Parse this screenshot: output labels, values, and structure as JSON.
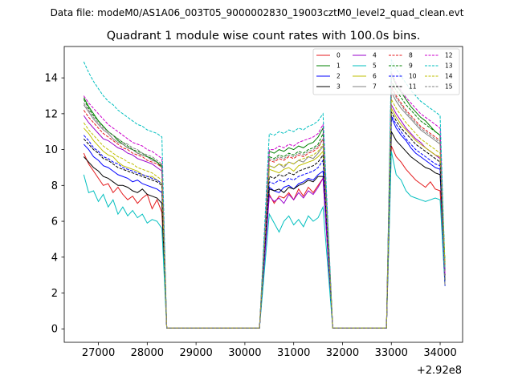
{
  "chart_data": {
    "type": "line",
    "suptitle": "Data file: modeM0/AS1A06_003T05_9000002830_19003cztM0_level2_quad_clean.evt",
    "title": "Quadrant 1 module wise count rates with 100.0s bins.",
    "xlabel": "",
    "ylabel": "",
    "x_offset_label": "+2.92e8",
    "x_offset": 292000000,
    "xlim": [
      26300,
      34460
    ],
    "ylim": [
      -0.75,
      15.75
    ],
    "xticks": [
      27000,
      28000,
      29000,
      30000,
      31000,
      32000,
      33000,
      34000
    ],
    "xtick_labels": [
      "27000",
      "28000",
      "29000",
      "30000",
      "31000",
      "32000",
      "33000",
      "34000"
    ],
    "yticks": [
      0,
      2,
      4,
      6,
      8,
      10,
      12,
      14
    ],
    "ytick_labels": [
      "0",
      "2",
      "4",
      "6",
      "8",
      "10",
      "12",
      "14"
    ],
    "grid": false,
    "legend_position": "top-right",
    "legend_columns": 4,
    "segments": [
      {
        "start": 26700,
        "count": 17
      },
      {
        "start": 30500,
        "count": 12
      },
      {
        "start": 33000,
        "count": 11
      }
    ],
    "segment_edges": {
      "gaps": [
        [
          28400,
          30300
        ],
        [
          31800,
          32900
        ]
      ],
      "drop_value": 0.05
    },
    "series": [
      {
        "name": "0",
        "color": "#e41a1c",
        "dash": "solid",
        "seg1": [
          9.8,
          9.2,
          8.8,
          8.4,
          8.0,
          8.1,
          7.6,
          7.9,
          7.5,
          7.2,
          7.4,
          7.0,
          7.3,
          7.5,
          6.7,
          7.2,
          6.5
        ],
        "seg2": [
          7.5,
          7.0,
          7.4,
          7.3,
          7.6,
          7.2,
          7.8,
          7.4,
          7.9,
          7.6,
          8.0,
          8.4
        ],
        "seg3": [
          10.2,
          9.6,
          9.3,
          8.9,
          8.6,
          8.3,
          8.1,
          7.9,
          8.2,
          7.8,
          7.7
        ]
      },
      {
        "name": "1",
        "color": "#008000",
        "dash": "solid",
        "seg1": [
          12.9,
          12.4,
          12.0,
          11.6,
          11.3,
          11.0,
          10.8,
          10.5,
          10.3,
          10.1,
          10.0,
          9.8,
          9.7,
          9.6,
          9.5,
          9.3,
          9.0
        ],
        "seg2": [
          9.9,
          9.8,
          10.0,
          9.9,
          10.1,
          10.0,
          10.2,
          10.1,
          10.3,
          10.4,
          10.7,
          11.2
        ],
        "seg3": [
          14.2,
          13.6,
          13.2,
          12.8,
          12.4,
          12.1,
          11.8,
          11.6,
          11.3,
          11.0,
          10.8
        ]
      },
      {
        "name": "2",
        "color": "#0000ff",
        "dash": "solid",
        "seg1": [
          10.3,
          10.0,
          9.6,
          9.4,
          9.1,
          9.0,
          8.8,
          8.6,
          8.5,
          8.4,
          8.2,
          8.3,
          8.1,
          8.0,
          7.9,
          7.8,
          7.6
        ],
        "seg2": [
          7.9,
          7.7,
          7.6,
          7.9,
          8.0,
          7.8,
          8.1,
          8.2,
          8.4,
          8.3,
          8.6,
          8.8
        ],
        "seg3": [
          11.8,
          11.2,
          10.8,
          10.5,
          10.1,
          9.8,
          9.6,
          9.4,
          9.2,
          9.0,
          8.9
        ]
      },
      {
        "name": "3",
        "color": "#000000",
        "dash": "solid",
        "seg1": [
          9.6,
          9.3,
          9.0,
          8.8,
          8.5,
          8.4,
          8.2,
          8.0,
          8.0,
          7.9,
          7.7,
          7.6,
          7.8,
          7.5,
          7.4,
          7.3,
          7.0
        ],
        "seg2": [
          7.8,
          7.7,
          7.8,
          7.6,
          7.9,
          7.8,
          8.0,
          8.1,
          8.3,
          8.2,
          8.5,
          8.5
        ],
        "seg3": [
          11.0,
          10.5,
          10.2,
          9.9,
          9.6,
          9.4,
          9.2,
          9.0,
          8.9,
          8.7,
          8.6
        ]
      },
      {
        "name": "4",
        "color": "#9900cc",
        "dash": "solid",
        "seg1": [
          11.9,
          11.5,
          11.2,
          10.9,
          10.6,
          10.5,
          10.3,
          10.1,
          10.0,
          9.8,
          9.7,
          9.5,
          9.4,
          9.3,
          9.2,
          9.0,
          8.8
        ],
        "seg2": [
          7.4,
          7.1,
          7.3,
          7.0,
          7.5,
          7.2,
          7.6,
          7.3,
          7.7,
          7.5,
          7.9,
          8.4
        ],
        "seg3": [
          12.5,
          12.0,
          11.6,
          11.2,
          10.9,
          10.6,
          10.4,
          10.1,
          9.9,
          9.7,
          9.5
        ]
      },
      {
        "name": "5",
        "color": "#00bfbf",
        "dash": "solid",
        "seg1": [
          8.6,
          7.6,
          7.7,
          7.1,
          7.5,
          6.8,
          7.2,
          6.4,
          6.8,
          6.3,
          6.6,
          6.2,
          6.4,
          5.9,
          6.1,
          6.0,
          5.6
        ],
        "seg2": [
          6.4,
          5.9,
          5.4,
          6.0,
          6.3,
          5.8,
          6.1,
          5.7,
          6.3,
          6.0,
          6.2,
          6.8
        ],
        "seg3": [
          9.9,
          8.6,
          8.3,
          7.7,
          7.4,
          7.3,
          7.2,
          7.1,
          7.2,
          7.3,
          7.2
        ]
      },
      {
        "name": "6",
        "color": "#bfbf00",
        "dash": "solid",
        "seg1": [
          11.2,
          10.9,
          10.5,
          10.2,
          9.9,
          9.7,
          9.6,
          9.3,
          9.1,
          9.0,
          8.9,
          8.8,
          8.6,
          8.5,
          8.5,
          8.3,
          8.1
        ],
        "seg2": [
          8.9,
          8.8,
          8.7,
          8.9,
          9.0,
          8.8,
          9.1,
          9.2,
          9.3,
          9.4,
          9.6,
          9.9
        ],
        "seg3": [
          12.3,
          11.8,
          11.4,
          11.1,
          10.8,
          10.5,
          10.3,
          10.1,
          9.9,
          9.7,
          9.6
        ]
      },
      {
        "name": "7",
        "color": "#808080",
        "dash": "solid",
        "seg1": [
          12.5,
          12.1,
          11.7,
          11.4,
          11.1,
          10.9,
          10.6,
          10.4,
          10.3,
          10.1,
          10.0,
          9.8,
          9.7,
          9.6,
          9.4,
          9.3,
          9.1
        ],
        "seg2": [
          9.1,
          9.0,
          9.2,
          9.0,
          9.3,
          9.2,
          9.4,
          9.3,
          9.6,
          9.5,
          9.8,
          10.2
        ],
        "seg3": [
          13.2,
          12.7,
          12.3,
          12.0,
          11.7,
          11.4,
          11.1,
          10.9,
          10.7,
          10.5,
          10.3
        ]
      },
      {
        "name": "8",
        "color": "#e41a1c",
        "dash": "dashed",
        "seg1": [
          12.2,
          11.8,
          11.5,
          11.2,
          10.9,
          10.7,
          10.5,
          10.3,
          10.1,
          10.0,
          9.8,
          9.7,
          9.6,
          9.4,
          9.3,
          9.2,
          9.0
        ],
        "seg2": [
          9.4,
          9.3,
          9.5,
          9.4,
          9.6,
          9.5,
          9.7,
          9.6,
          9.8,
          9.9,
          10.1,
          10.6
        ],
        "seg3": [
          13.5,
          13.0,
          12.6,
          12.2,
          11.9,
          11.6,
          11.3,
          11.1,
          10.9,
          10.7,
          10.5
        ]
      },
      {
        "name": "9",
        "color": "#008000",
        "dash": "dashed",
        "seg1": [
          12.8,
          12.3,
          11.9,
          11.6,
          11.3,
          11.0,
          10.8,
          10.6,
          10.4,
          10.2,
          10.0,
          9.9,
          9.8,
          9.6,
          9.5,
          9.3,
          9.1
        ],
        "seg2": [
          9.6,
          9.5,
          9.7,
          9.6,
          9.8,
          9.7,
          9.9,
          9.8,
          10.0,
          10.1,
          10.3,
          10.9
        ],
        "seg3": [
          13.8,
          13.3,
          12.9,
          12.5,
          12.2,
          11.9,
          11.6,
          11.4,
          11.2,
          11.0,
          10.8
        ]
      },
      {
        "name": "10",
        "color": "#0000ff",
        "dash": "dashed",
        "seg1": [
          10.8,
          10.5,
          10.1,
          9.9,
          9.6,
          9.5,
          9.3,
          9.2,
          9.0,
          8.9,
          8.8,
          8.7,
          8.6,
          8.5,
          8.4,
          8.3,
          8.1
        ],
        "seg2": [
          8.2,
          8.1,
          8.3,
          8.2,
          8.4,
          8.3,
          8.5,
          8.6,
          8.7,
          8.8,
          9.0,
          9.4
        ],
        "seg3": [
          11.9,
          11.4,
          11.0,
          10.6,
          10.3,
          10.0,
          9.8,
          9.6,
          9.4,
          9.2,
          9.1
        ]
      },
      {
        "name": "11",
        "color": "#000000",
        "dash": "dashed",
        "seg1": [
          10.6,
          10.3,
          10.0,
          9.8,
          9.5,
          9.4,
          9.2,
          9.0,
          8.9,
          8.8,
          8.7,
          8.6,
          8.5,
          8.4,
          8.3,
          8.2,
          8.0
        ],
        "seg2": [
          8.5,
          8.4,
          8.6,
          8.5,
          8.7,
          8.6,
          8.8,
          8.9,
          9.0,
          9.1,
          9.3,
          9.7
        ],
        "seg3": [
          12.1,
          11.6,
          11.2,
          10.9,
          10.6,
          10.3,
          10.1,
          9.9,
          9.7,
          9.5,
          9.3
        ]
      },
      {
        "name": "12",
        "color": "#cc00cc",
        "dash": "dashed",
        "seg1": [
          13.0,
          12.6,
          12.3,
          12.0,
          11.7,
          11.4,
          11.2,
          11.0,
          10.8,
          10.6,
          10.4,
          10.3,
          10.2,
          10.0,
          9.9,
          9.7,
          9.5
        ],
        "seg2": [
          10.0,
          10.0,
          10.2,
          10.1,
          10.3,
          10.2,
          10.4,
          10.5,
          10.6,
          10.7,
          10.9,
          11.4
        ],
        "seg3": [
          14.3,
          13.7,
          13.3,
          12.9,
          12.6,
          12.3,
          12.0,
          11.8,
          11.6,
          11.4,
          11.2
        ]
      },
      {
        "name": "13",
        "color": "#00bfbf",
        "dash": "dashed",
        "seg1": [
          14.9,
          14.3,
          13.8,
          13.4,
          13.0,
          12.7,
          12.5,
          12.2,
          12.0,
          11.8,
          11.6,
          11.4,
          11.3,
          11.1,
          11.0,
          10.9,
          10.7
        ],
        "seg2": [
          10.9,
          10.8,
          11.0,
          10.9,
          11.1,
          11.0,
          11.2,
          11.1,
          11.3,
          11.4,
          11.6,
          12.0
        ],
        "seg3": [
          15.0,
          14.5,
          14.1,
          13.7,
          13.3,
          13.0,
          12.7,
          12.5,
          12.3,
          12.1,
          11.9
        ]
      },
      {
        "name": "14",
        "color": "#bfbf00",
        "dash": "dashed",
        "seg1": [
          11.5,
          11.1,
          10.8,
          10.5,
          10.2,
          10.0,
          9.8,
          9.6,
          9.5,
          9.3,
          9.2,
          9.0,
          8.9,
          8.8,
          8.7,
          8.5,
          8.3
        ],
        "seg2": [
          9.1,
          9.0,
          9.2,
          9.1,
          9.3,
          9.2,
          9.4,
          9.5,
          9.6,
          9.7,
          9.9,
          10.3
        ],
        "seg3": [
          12.8,
          12.3,
          11.9,
          11.5,
          11.2,
          10.9,
          10.6,
          10.4,
          10.2,
          10.0,
          9.8
        ]
      },
      {
        "name": "15",
        "color": "#808080",
        "dash": "dashed",
        "seg1": [
          12.6,
          12.2,
          11.8,
          11.5,
          11.2,
          11.0,
          10.8,
          10.6,
          10.4,
          10.3,
          10.1,
          10.0,
          9.8,
          9.7,
          9.6,
          9.4,
          9.2
        ],
        "seg2": [
          9.5,
          9.4,
          9.6,
          9.5,
          9.7,
          9.6,
          9.8,
          9.7,
          9.9,
          10.0,
          10.2,
          10.6
        ],
        "seg3": [
          13.4,
          12.9,
          12.5,
          12.1,
          11.8,
          11.5,
          11.2,
          11.0,
          10.8,
          10.6,
          10.4
        ]
      }
    ]
  }
}
